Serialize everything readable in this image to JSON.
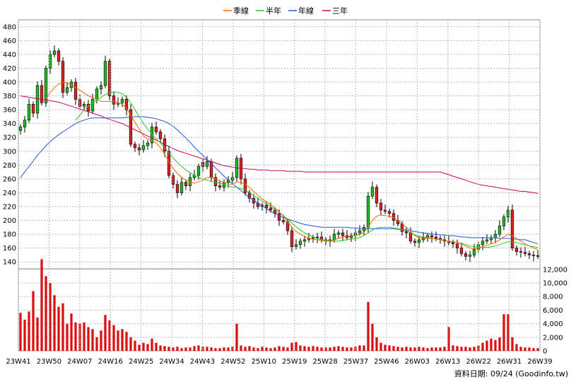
{
  "chart_data": {
    "type": "candlestick",
    "legend": [
      {
        "label": "季線",
        "color": "#ff6600"
      },
      {
        "label": "半年",
        "color": "#22cc22"
      },
      {
        "label": "年線",
        "color": "#2255dd"
      },
      {
        "label": "三年",
        "color": "#cc0066"
      }
    ],
    "x_ticks": [
      "23W41",
      "23W50",
      "24W07",
      "24W16",
      "24W25",
      "24W34",
      "24W43",
      "24W52",
      "25W10",
      "25W19",
      "25W28",
      "25W37",
      "25W46",
      "26W03",
      "26W13",
      "26W22",
      "26W31",
      "26W39"
    ],
    "price_axis": {
      "min": 130,
      "max": 490,
      "ticks": [
        140,
        160,
        180,
        200,
        220,
        240,
        260,
        280,
        300,
        320,
        340,
        360,
        380,
        400,
        420,
        440,
        460,
        480
      ]
    },
    "volume_axis": {
      "min": 0,
      "max": 12500,
      "ticks": [
        0,
        2000,
        4000,
        6000,
        8000,
        10000,
        12000
      ],
      "tick_labels": [
        "0",
        "2,000",
        "4,000",
        "6,000",
        "8,000",
        "10,000",
        "12,000"
      ]
    },
    "up_color": "#22bb22",
    "down_color": "#dd2222",
    "volume_color": "#dd1111",
    "footer_text": "資料日期: 09/24 (Goodinfo.tw)",
    "close": [
      335,
      345,
      368,
      355,
      395,
      370,
      420,
      440,
      445,
      430,
      385,
      392,
      400,
      375,
      365,
      368,
      358,
      375,
      390,
      395,
      430,
      380,
      368,
      370,
      375,
      360,
      310,
      305,
      302,
      308,
      312,
      335,
      328,
      318,
      300,
      265,
      252,
      240,
      255,
      250,
      262,
      265,
      278,
      278,
      285,
      262,
      250,
      248,
      255,
      258,
      262,
      290,
      260,
      240,
      232,
      225,
      220,
      222,
      218,
      215,
      210,
      200,
      198,
      185,
      162,
      165,
      170,
      172,
      174,
      175,
      176,
      172,
      170,
      172,
      180,
      182,
      178,
      175,
      178,
      182,
      185,
      190,
      235,
      248,
      225,
      215,
      213,
      210,
      200,
      195,
      184,
      182,
      170,
      168,
      172,
      175,
      178,
      176,
      174,
      172,
      170,
      168,
      166,
      160,
      152,
      148,
      150,
      158,
      165,
      170,
      172,
      175,
      180,
      192,
      205,
      215,
      160,
      155,
      154,
      152,
      150,
      149,
      148
    ],
    "ma_quarter": [
      null,
      null,
      null,
      null,
      null,
      null,
      375,
      385,
      392,
      397,
      400,
      399,
      396,
      392,
      388,
      384,
      380,
      378,
      375,
      372,
      372,
      372,
      372,
      370,
      368,
      362,
      352,
      342,
      332,
      322,
      318,
      315,
      312,
      305,
      295,
      285,
      275,
      268,
      262,
      258,
      255,
      254,
      256,
      258,
      262,
      262,
      260,
      257,
      255,
      253,
      252,
      256,
      255,
      252,
      248,
      242,
      236,
      231,
      227,
      223,
      218,
      212,
      206,
      198,
      190,
      184,
      180,
      177,
      174,
      173,
      172,
      171,
      170,
      170,
      172,
      174,
      176,
      177,
      177,
      178,
      180,
      183,
      190,
      200,
      206,
      208,
      207,
      206,
      204,
      200,
      195,
      190,
      184,
      178,
      175,
      174,
      174,
      174,
      173,
      172,
      171,
      170,
      169,
      168,
      166,
      163,
      160,
      159,
      160,
      162,
      164,
      166,
      168,
      172,
      176,
      180,
      178,
      174,
      170,
      166,
      163,
      160,
      158
    ],
    "ma_half": [
      null,
      null,
      null,
      null,
      null,
      null,
      null,
      null,
      null,
      null,
      null,
      null,
      null,
      345,
      352,
      360,
      365,
      370,
      374,
      378,
      382,
      385,
      386,
      385,
      383,
      378,
      370,
      360,
      350,
      340,
      332,
      325,
      318,
      312,
      305,
      298,
      290,
      284,
      278,
      273,
      269,
      265,
      262,
      260,
      258,
      256,
      255,
      254,
      252,
      250,
      248,
      248,
      246,
      244,
      240,
      236,
      232,
      228,
      224,
      220,
      216,
      212,
      207,
      202,
      196,
      191,
      186,
      182,
      179,
      176,
      174,
      172,
      171,
      170,
      170,
      170,
      171,
      172,
      173,
      174,
      175,
      178,
      182,
      186,
      189,
      190,
      190,
      190,
      189,
      188,
      187,
      185,
      182,
      179,
      177,
      176,
      175,
      174,
      173,
      172,
      171,
      170,
      169,
      168,
      167,
      165,
      163,
      162,
      161,
      161,
      161,
      162,
      163,
      165,
      167,
      169,
      169,
      168,
      166,
      165,
      163,
      162,
      161
    ],
    "ma_year": [
      262,
      270,
      278,
      286,
      294,
      301,
      308,
      314,
      319,
      324,
      328,
      332,
      336,
      340,
      343,
      345,
      347,
      348,
      348,
      348,
      348,
      348,
      348,
      348,
      348,
      349,
      349,
      350,
      350,
      350,
      349,
      348,
      347,
      345,
      343,
      340,
      336,
      331,
      325,
      319,
      313,
      306,
      300,
      294,
      288,
      282,
      276,
      270,
      264,
      258,
      253,
      248,
      243,
      238,
      233,
      229,
      225,
      221,
      217,
      213,
      210,
      207,
      204,
      202,
      200,
      198,
      196,
      194,
      193,
      192,
      191,
      190,
      190,
      190,
      190,
      190,
      190,
      190,
      189,
      189,
      188,
      188,
      188,
      188,
      188,
      188,
      188,
      188,
      188,
      187,
      187,
      186,
      185,
      184,
      183,
      182,
      181,
      180,
      180,
      179,
      179,
      178,
      178,
      177,
      176,
      176,
      175,
      175,
      175,
      175,
      175,
      175,
      175,
      174,
      174,
      174,
      173,
      173,
      172,
      172,
      170,
      168,
      166
    ],
    "ma_3year": [
      380,
      379,
      378,
      377,
      376,
      375,
      374,
      373,
      372,
      371,
      369,
      367,
      365,
      363,
      361,
      359,
      357,
      355,
      353,
      351,
      348,
      346,
      344,
      342,
      340,
      337,
      334,
      331,
      328,
      325,
      322,
      319,
      316,
      313,
      310,
      307,
      304,
      301,
      299,
      297,
      295,
      293,
      291,
      289,
      287,
      285,
      283,
      281,
      279,
      278,
      277,
      276,
      275,
      275,
      274,
      274,
      273,
      273,
      273,
      272,
      272,
      272,
      272,
      271,
      271,
      271,
      271,
      270,
      270,
      270,
      270,
      270,
      270,
      270,
      270,
      270,
      270,
      270,
      270,
      270,
      270,
      270,
      270,
      270,
      270,
      270,
      270,
      270,
      270,
      270,
      270,
      270,
      270,
      270,
      270,
      270,
      270,
      270,
      270,
      270,
      268,
      266,
      264,
      262,
      260,
      258,
      256,
      254,
      252,
      251,
      250,
      249,
      248,
      247,
      246,
      245,
      244,
      243,
      242,
      242,
      241,
      240,
      239
    ],
    "volume": [
      5600,
      4600,
      5800,
      8800,
      4900,
      13500,
      11000,
      10000,
      8200,
      6500,
      7000,
      4000,
      5500,
      4200,
      4000,
      4200,
      3500,
      3200,
      2000,
      3000,
      5300,
      4500,
      3800,
      3000,
      3200,
      2800,
      2000,
      1500,
      900,
      1200,
      1000,
      1800,
      1200,
      800,
      700,
      600,
      500,
      600,
      400,
      500,
      500,
      700,
      800,
      600,
      600,
      500,
      400,
      400,
      500,
      500,
      600,
      4000,
      800,
      600,
      700,
      500,
      400,
      600,
      500,
      400,
      500,
      700,
      600,
      500,
      1200,
      1300,
      800,
      700,
      600,
      700,
      600,
      500,
      500,
      500,
      600,
      700,
      600,
      500,
      500,
      600,
      800,
      800,
      7200,
      4000,
      2000,
      1200,
      900,
      800,
      700,
      600,
      500,
      600,
      500,
      500,
      600,
      500,
      400,
      500,
      500,
      500,
      600,
      3500,
      800,
      700,
      600,
      600,
      500,
      600,
      800,
      1200,
      1500,
      1800,
      1600,
      2000,
      5400,
      5400,
      2000,
      1000,
      600,
      500,
      500,
      400,
      400
    ],
    "up": [
      1,
      1,
      1,
      0,
      1,
      0,
      1,
      1,
      1,
      0,
      0,
      1,
      1,
      0,
      0,
      1,
      0,
      1,
      1,
      1,
      1,
      0,
      0,
      1,
      1,
      0,
      0,
      0,
      0,
      1,
      1,
      1,
      0,
      0,
      0,
      0,
      0,
      0,
      1,
      0,
      1,
      1,
      1,
      0,
      1,
      0,
      0,
      0,
      1,
      1,
      1,
      1,
      0,
      0,
      0,
      0,
      0,
      1,
      0,
      0,
      0,
      0,
      0,
      0,
      0,
      1,
      1,
      1,
      1,
      1,
      1,
      0,
      0,
      1,
      1,
      1,
      0,
      0,
      1,
      1,
      1,
      1,
      1,
      1,
      0,
      0,
      0,
      0,
      0,
      0,
      0,
      0,
      0,
      0,
      1,
      1,
      1,
      0,
      0,
      0,
      0,
      0,
      0,
      0,
      0,
      0,
      1,
      1,
      1,
      1,
      1,
      1,
      1,
      1,
      1,
      1,
      0,
      0,
      0,
      0,
      0,
      0,
      0
    ]
  }
}
